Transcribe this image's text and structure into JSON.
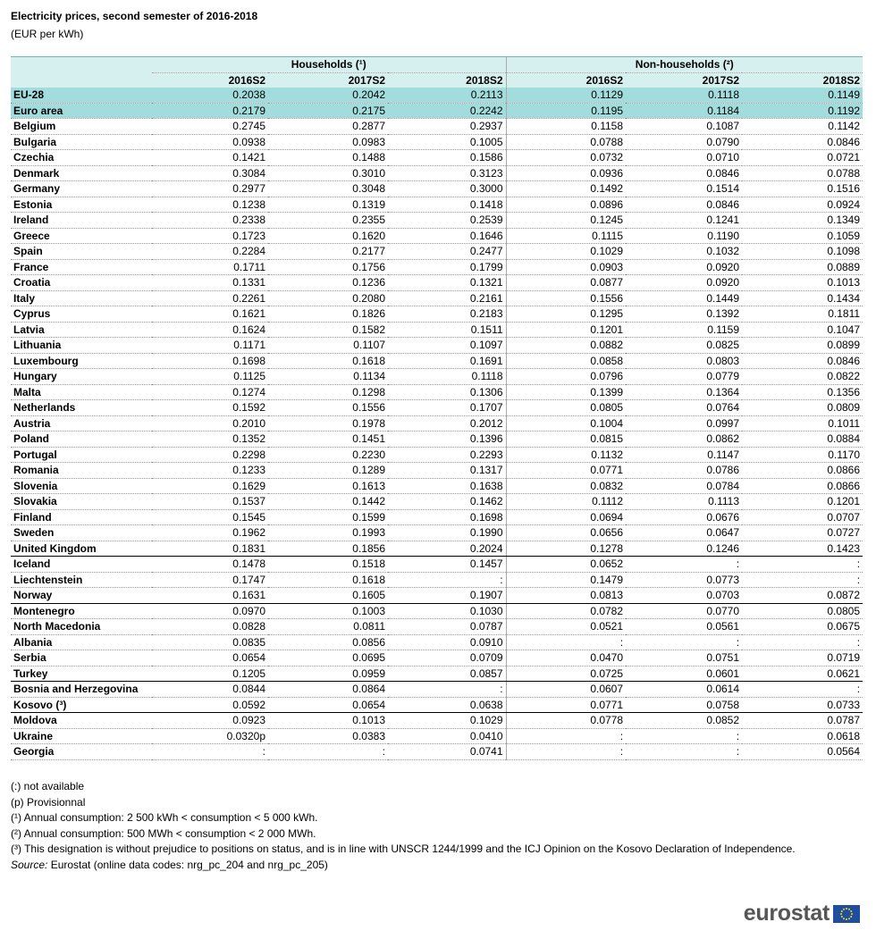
{
  "header": {
    "title": "Electricity prices, second semester of 2016-2018",
    "subtitle": "(EUR per kWh)"
  },
  "table": {
    "groups": [
      "Households (¹)",
      "Non-households (²)"
    ],
    "columns": [
      "2016S2",
      "2017S2",
      "2018S2",
      "2016S2",
      "2017S2",
      "2018S2"
    ],
    "rows": [
      [
        "EU-28",
        "0.2038",
        "0.2042",
        "0.2113",
        "0.1129",
        "0.1118",
        "0.1149"
      ],
      [
        "Euro area",
        "0.2179",
        "0.2175",
        "0.2242",
        "0.1195",
        "0.1184",
        "0.1192"
      ],
      [
        "Belgium",
        "0.2745",
        "0.2877",
        "0.2937",
        "0.1158",
        "0.1087",
        "0.1142"
      ],
      [
        "Bulgaria",
        "0.0938",
        "0.0983",
        "0.1005",
        "0.0788",
        "0.0790",
        "0.0846"
      ],
      [
        "Czechia",
        "0.1421",
        "0.1488",
        "0.1586",
        "0.0732",
        "0.0710",
        "0.0721"
      ],
      [
        "Denmark",
        "0.3084",
        "0.3010",
        "0.3123",
        "0.0936",
        "0.0846",
        "0.0788"
      ],
      [
        "Germany",
        "0.2977",
        "0.3048",
        "0.3000",
        "0.1492",
        "0.1514",
        "0.1516"
      ],
      [
        "Estonia",
        "0.1238",
        "0.1319",
        "0.1418",
        "0.0896",
        "0.0846",
        "0.0924"
      ],
      [
        "Ireland",
        "0.2338",
        "0.2355",
        "0.2539",
        "0.1245",
        "0.1241",
        "0.1349"
      ],
      [
        "Greece",
        "0.1723",
        "0.1620",
        "0.1646",
        "0.1115",
        "0.1190",
        "0.1059"
      ],
      [
        "Spain",
        "0.2284",
        "0.2177",
        "0.2477",
        "0.1029",
        "0.1032",
        "0.1098"
      ],
      [
        "France",
        "0.1711",
        "0.1756",
        "0.1799",
        "0.0903",
        "0.0920",
        "0.0889"
      ],
      [
        "Croatia",
        "0.1331",
        "0.1236",
        "0.1321",
        "0.0877",
        "0.0920",
        "0.1013"
      ],
      [
        "Italy",
        "0.2261",
        "0.2080",
        "0.2161",
        "0.1556",
        "0.1449",
        "0.1434"
      ],
      [
        "Cyprus",
        "0.1621",
        "0.1826",
        "0.2183",
        "0.1295",
        "0.1392",
        "0.1811"
      ],
      [
        "Latvia",
        "0.1624",
        "0.1582",
        "0.1511",
        "0.1201",
        "0.1159",
        "0.1047"
      ],
      [
        "Lithuania",
        "0.1171",
        "0.1107",
        "0.1097",
        "0.0882",
        "0.0825",
        "0.0899"
      ],
      [
        "Luxembourg",
        "0.1698",
        "0.1618",
        "0.1691",
        "0.0858",
        "0.0803",
        "0.0846"
      ],
      [
        "Hungary",
        "0.1125",
        "0.1134",
        "0.1118",
        "0.0796",
        "0.0779",
        "0.0822"
      ],
      [
        "Malta",
        "0.1274",
        "0.1298",
        "0.1306",
        "0.1399",
        "0.1364",
        "0.1356"
      ],
      [
        "Netherlands",
        "0.1592",
        "0.1556",
        "0.1707",
        "0.0805",
        "0.0764",
        "0.0809"
      ],
      [
        "Austria",
        "0.2010",
        "0.1978",
        "0.2012",
        "0.1004",
        "0.0997",
        "0.1011"
      ],
      [
        "Poland",
        "0.1352",
        "0.1451",
        "0.1396",
        "0.0815",
        "0.0862",
        "0.0884"
      ],
      [
        "Portugal",
        "0.2298",
        "0.2230",
        "0.2293",
        "0.1132",
        "0.1147",
        "0.1170"
      ],
      [
        "Romania",
        "0.1233",
        "0.1289",
        "0.1317",
        "0.0771",
        "0.0786",
        "0.0866"
      ],
      [
        "Slovenia",
        "0.1629",
        "0.1613",
        "0.1638",
        "0.0832",
        "0.0784",
        "0.0866"
      ],
      [
        "Slovakia",
        "0.1537",
        "0.1442",
        "0.1462",
        "0.1112",
        "0.1113",
        "0.1201"
      ],
      [
        "Finland",
        "0.1545",
        "0.1599",
        "0.1698",
        "0.0694",
        "0.0676",
        "0.0707"
      ],
      [
        "Sweden",
        "0.1962",
        "0.1993",
        "0.1990",
        "0.0656",
        "0.0647",
        "0.0727"
      ],
      [
        "United Kingdom",
        "0.1831",
        "0.1856",
        "0.2024",
        "0.1278",
        "0.1246",
        "0.1423"
      ],
      [
        "Iceland",
        "0.1478",
        "0.1518",
        "0.1457",
        "0.0652",
        ":",
        ":"
      ],
      [
        "Liechtenstein",
        "0.1747",
        "0.1618",
        ":",
        "0.1479",
        "0.0773",
        ":"
      ],
      [
        "Norway",
        "0.1631",
        "0.1605",
        "0.1907",
        "0.0813",
        "0.0703",
        "0.0872"
      ],
      [
        "Montenegro",
        "0.0970",
        "0.1003",
        "0.1030",
        "0.0782",
        "0.0770",
        "0.0805"
      ],
      [
        "North Macedonia",
        "0.0828",
        "0.0811",
        "0.0787",
        "0.0521",
        "0.0561",
        "0.0675"
      ],
      [
        "Albania",
        "0.0835",
        "0.0856",
        "0.0910",
        ":",
        ":",
        ":"
      ],
      [
        "Serbia",
        "0.0654",
        "0.0695",
        "0.0709",
        "0.0470",
        "0.0751",
        "0.0719"
      ],
      [
        "Turkey",
        "0.1205",
        "0.0959",
        "0.0857",
        "0.0725",
        "0.0601",
        "0.0621"
      ],
      [
        "Bosnia and Herzegovina",
        "0.0844",
        "0.0864",
        ":",
        "0.0607",
        "0.0614",
        ":"
      ],
      [
        "Kosovo (³)",
        "0.0592",
        "0.0654",
        "0.0638",
        "0.0771",
        "0.0758",
        "0.0733"
      ],
      [
        "Moldova",
        "0.0923",
        "0.1013",
        "0.1029",
        "0.0778",
        "0.0852",
        "0.0787"
      ],
      [
        "Ukraine",
        "0.0320p",
        "0.0383",
        "0.0410",
        ":",
        ":",
        "0.0618"
      ],
      [
        "Georgia",
        ":",
        ":",
        "0.0741",
        ":",
        ":",
        "0.0564"
      ]
    ]
  },
  "notes": [
    "(:) not available",
    "(p) Provisionnal",
    "(¹) Annual consumption: 2 500 kWh < consumption < 5 000 kWh.",
    "(²) Annual consumption: 500 MWh < consumption < 2 000 MWh.",
    "(³) This designation is without prejudice to positions on status, and is in line with UNSCR 1244/1999 and the ICJ Opinion on the Kosovo Declaration of Independence."
  ],
  "source_label": "Source:",
  "source": "Eurostat (online data codes: nrg_pc_204 and nrg_pc_205)",
  "logo": "eurostat"
}
